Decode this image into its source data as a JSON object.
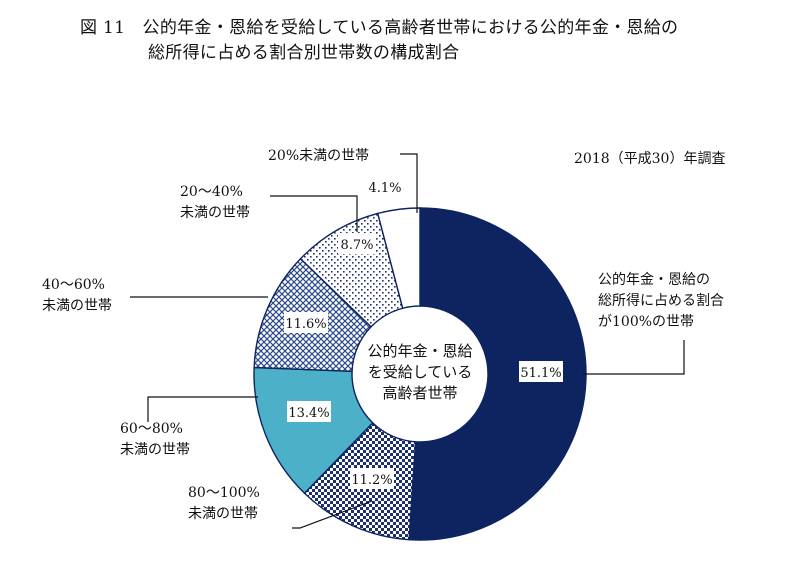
{
  "figure": {
    "title_line1": "図 11　公的年金・恩給を受給している高齢者世帯における公的年金・恩給の",
    "title_line2": "総所得に占める割合別世帯数の構成割合",
    "survey_note": "2018（平成30）年調査",
    "center_text": [
      "公的年金・恩給",
      "を受給している",
      "高齢者世帯"
    ]
  },
  "chart_data": {
    "type": "pie",
    "variant": "donut",
    "unit": "%",
    "start": "12 o'clock, clockwise",
    "slices": [
      {
        "label_lines": [
          "公的年金・恩給の",
          "総所得に占める割合",
          "が100%の世帯"
        ],
        "value": 51.1,
        "value_label": "51.1%",
        "color": "#0d2461",
        "pattern": "solid"
      },
      {
        "label_lines": [
          "80〜100%",
          "未満の世帯"
        ],
        "value": 11.2,
        "value_label": "11.2%",
        "color": "#1d2f6f",
        "pattern": "checker"
      },
      {
        "label_lines": [
          "60〜80%",
          "未満の世帯"
        ],
        "value": 13.4,
        "value_label": "13.4%",
        "color": "#4bb0c8",
        "pattern": "solid"
      },
      {
        "label_lines": [
          "40〜60%",
          "未満の世帯"
        ],
        "value": 11.6,
        "value_label": "11.6%",
        "color": "#2c4a8a",
        "pattern": "crosshatch"
      },
      {
        "label_lines": [
          "20〜40%",
          "未満の世帯"
        ],
        "value": 8.7,
        "value_label": "8.7%",
        "color": "#1d2f6f",
        "pattern": "dots"
      },
      {
        "label_lines": [
          "20%未満の世帯"
        ],
        "value": 4.1,
        "value_label": "4.1%",
        "color": "#ffffff",
        "pattern": "solid"
      }
    ]
  }
}
